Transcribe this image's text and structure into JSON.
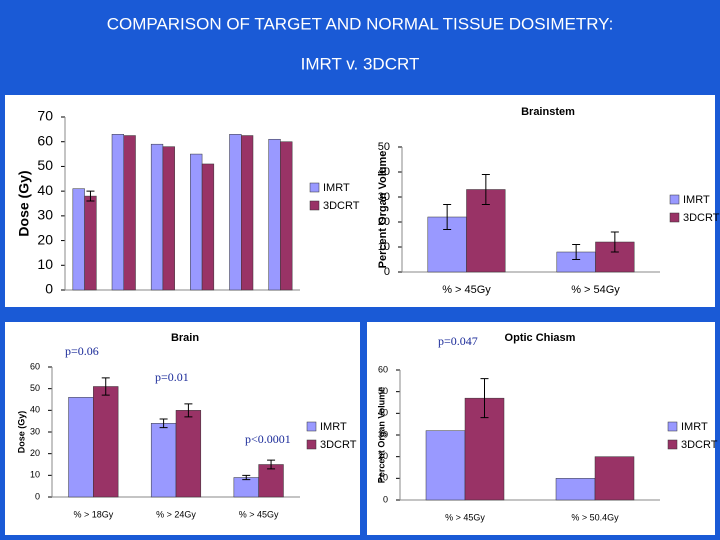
{
  "slide": {
    "title": "COMPARISON OF TARGET AND NORMAL TISSUE DOSIMETRY:",
    "subtitle": "IMRT v. 3DCRT"
  },
  "chart_data": [
    {
      "type": "bar",
      "y_label": "Dose (Gy)",
      "categories": [
        null,
        null,
        null,
        null,
        null,
        null
      ],
      "series": [
        {
          "name": "IMRT",
          "color": "#9999ff",
          "values": [
            41,
            63,
            59,
            55,
            63,
            61
          ]
        },
        {
          "name": "3DCRT",
          "color": "#993366",
          "values": [
            38,
            62.5,
            58,
            51,
            62.5,
            60
          ],
          "errors": [
            2,
            0,
            0,
            0,
            0,
            0
          ]
        }
      ],
      "ylim": [
        0,
        70
      ],
      "yticks": [
        0,
        10,
        20,
        30,
        40,
        50,
        60,
        70
      ]
    },
    {
      "type": "bar",
      "title": "Brainstem",
      "y_label": "Percent Organ Volume",
      "categories": [
        "% > 45Gy",
        "% > 54Gy"
      ],
      "series": [
        {
          "name": "IMRT",
          "color": "#9999ff",
          "values": [
            22,
            8
          ],
          "errors": [
            5,
            3
          ]
        },
        {
          "name": "3DCRT",
          "color": "#993366",
          "values": [
            33,
            12
          ],
          "errors": [
            6,
            4
          ]
        }
      ],
      "ylim": [
        0,
        50
      ],
      "yticks": [
        0,
        10,
        20,
        30,
        40,
        50
      ]
    },
    {
      "type": "bar",
      "title": "Brain",
      "y_label": "Dose (Gy)",
      "categories": [
        "% > 18Gy",
        "% > 24Gy",
        "% > 45Gy"
      ],
      "series": [
        {
          "name": "IMRT",
          "color": "#9999ff",
          "values": [
            46,
            34,
            9
          ],
          "errors": [
            0,
            2,
            1
          ]
        },
        {
          "name": "3DCRT",
          "color": "#993366",
          "values": [
            51,
            40,
            15
          ],
          "errors": [
            4,
            3,
            2
          ]
        }
      ],
      "ylim": [
        0,
        60
      ],
      "yticks": [
        0,
        10,
        20,
        30,
        40,
        50,
        60
      ],
      "annotations": [
        "p=0.06",
        "p=0.01",
        "p<0.0001"
      ]
    },
    {
      "type": "bar",
      "title": "Optic Chiasm",
      "y_label": "Percent Organ Volume",
      "categories": [
        "% > 45Gy",
        "% > 50.4Gy"
      ],
      "series": [
        {
          "name": "IMRT",
          "color": "#9999ff",
          "values": [
            32,
            10
          ]
        },
        {
          "name": "3DCRT",
          "color": "#993366",
          "values": [
            47,
            20
          ],
          "errors": [
            9,
            0
          ]
        }
      ],
      "ylim": [
        0,
        60
      ],
      "yticks": [
        0,
        10,
        20,
        30,
        40,
        50,
        60
      ],
      "annotations": [
        "p=0.047"
      ]
    }
  ]
}
